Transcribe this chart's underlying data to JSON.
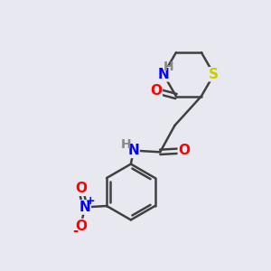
{
  "bg_color": "#e8e8f0",
  "bond_color": "#404040",
  "bond_width": 1.8,
  "atom_colors": {
    "O": "#ff0000",
    "N": "#0000ff",
    "S": "#cccc00",
    "H": "#888888",
    "C": "#404040"
  },
  "font_size": 11,
  "figsize": [
    3.0,
    3.0
  ],
  "dpi": 100
}
